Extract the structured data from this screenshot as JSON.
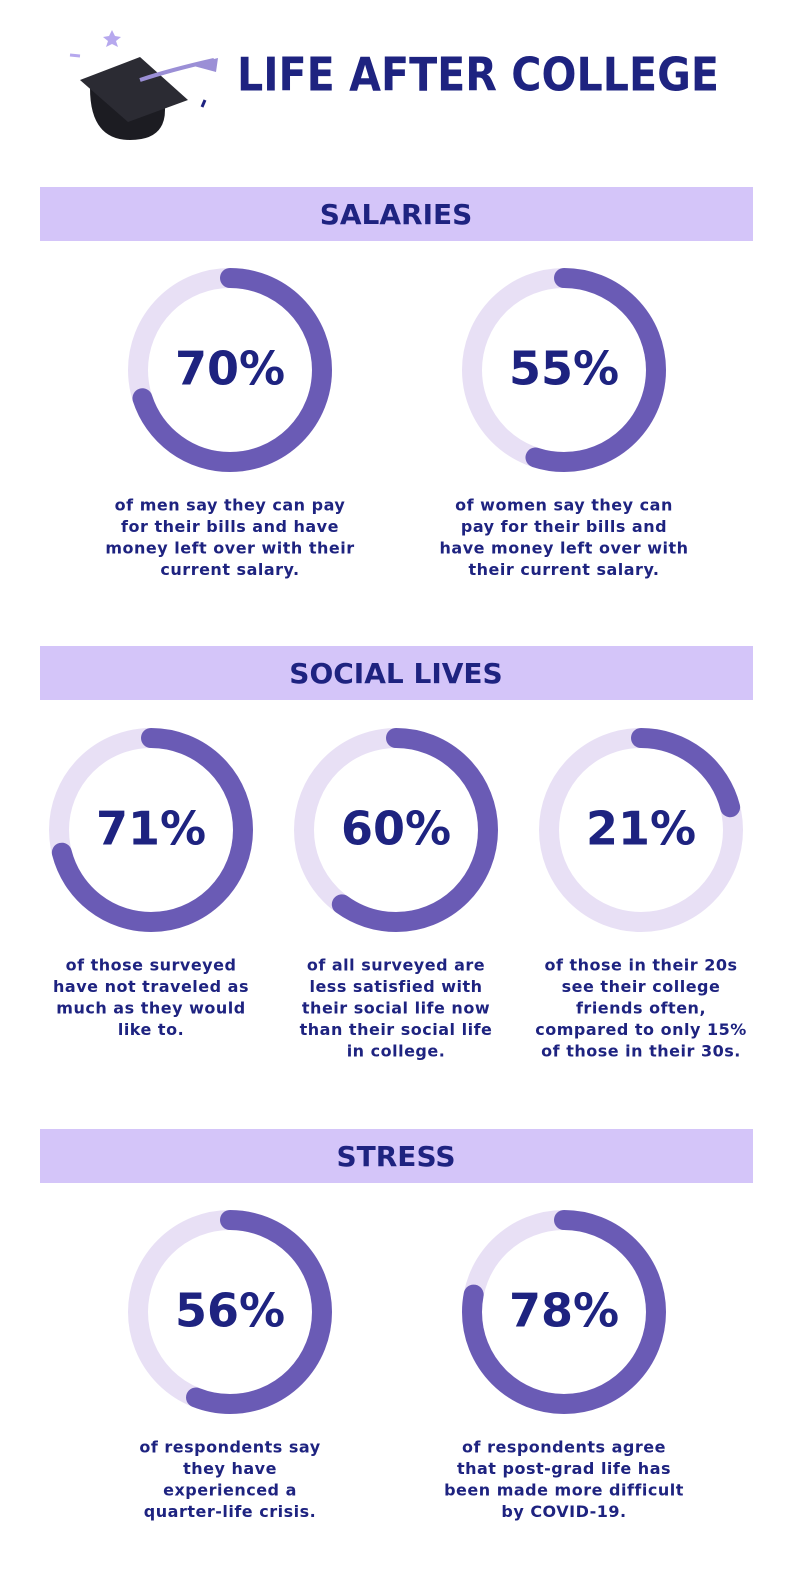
{
  "header": {
    "title": "LIFE AFTER COLLEGE"
  },
  "sections": [
    {
      "heading": "SALARIES",
      "stats": [
        {
          "value": 70,
          "label": "70%",
          "lines": [
            "of men say they can pay",
            "for their bills and have",
            "money left over with their",
            "current salary."
          ]
        },
        {
          "value": 55,
          "label": "55%",
          "lines": [
            "of women say they can",
            "pay for their bills and",
            "have money left over with",
            "their current salary."
          ]
        }
      ]
    },
    {
      "heading": "SOCIAL LIVES",
      "stats": [
        {
          "value": 71,
          "label": "71%",
          "lines": [
            "of those surveyed",
            "have not traveled as",
            "much as they would",
            "like to."
          ]
        },
        {
          "value": 60,
          "label": "60%",
          "lines": [
            "of all surveyed are",
            "less satisfied with",
            "their social life now",
            "than their social life",
            "in college."
          ]
        },
        {
          "value": 21,
          "label": "21%",
          "lines": [
            "of those in their 20s",
            "see their college",
            "friends often,",
            "compared to only 15%",
            "of those in their 30s."
          ]
        }
      ]
    },
    {
      "heading": "STRESS",
      "stats": [
        {
          "value": 56,
          "label": "56%",
          "lines": [
            "of respondents say",
            "they have",
            "experienced a",
            "quarter-life crisis."
          ]
        },
        {
          "value": 78,
          "label": "78%",
          "lines": [
            "of respondents agree",
            "that post-grad life has",
            "been made more difficult",
            "by COVID-19."
          ]
        }
      ]
    }
  ]
}
